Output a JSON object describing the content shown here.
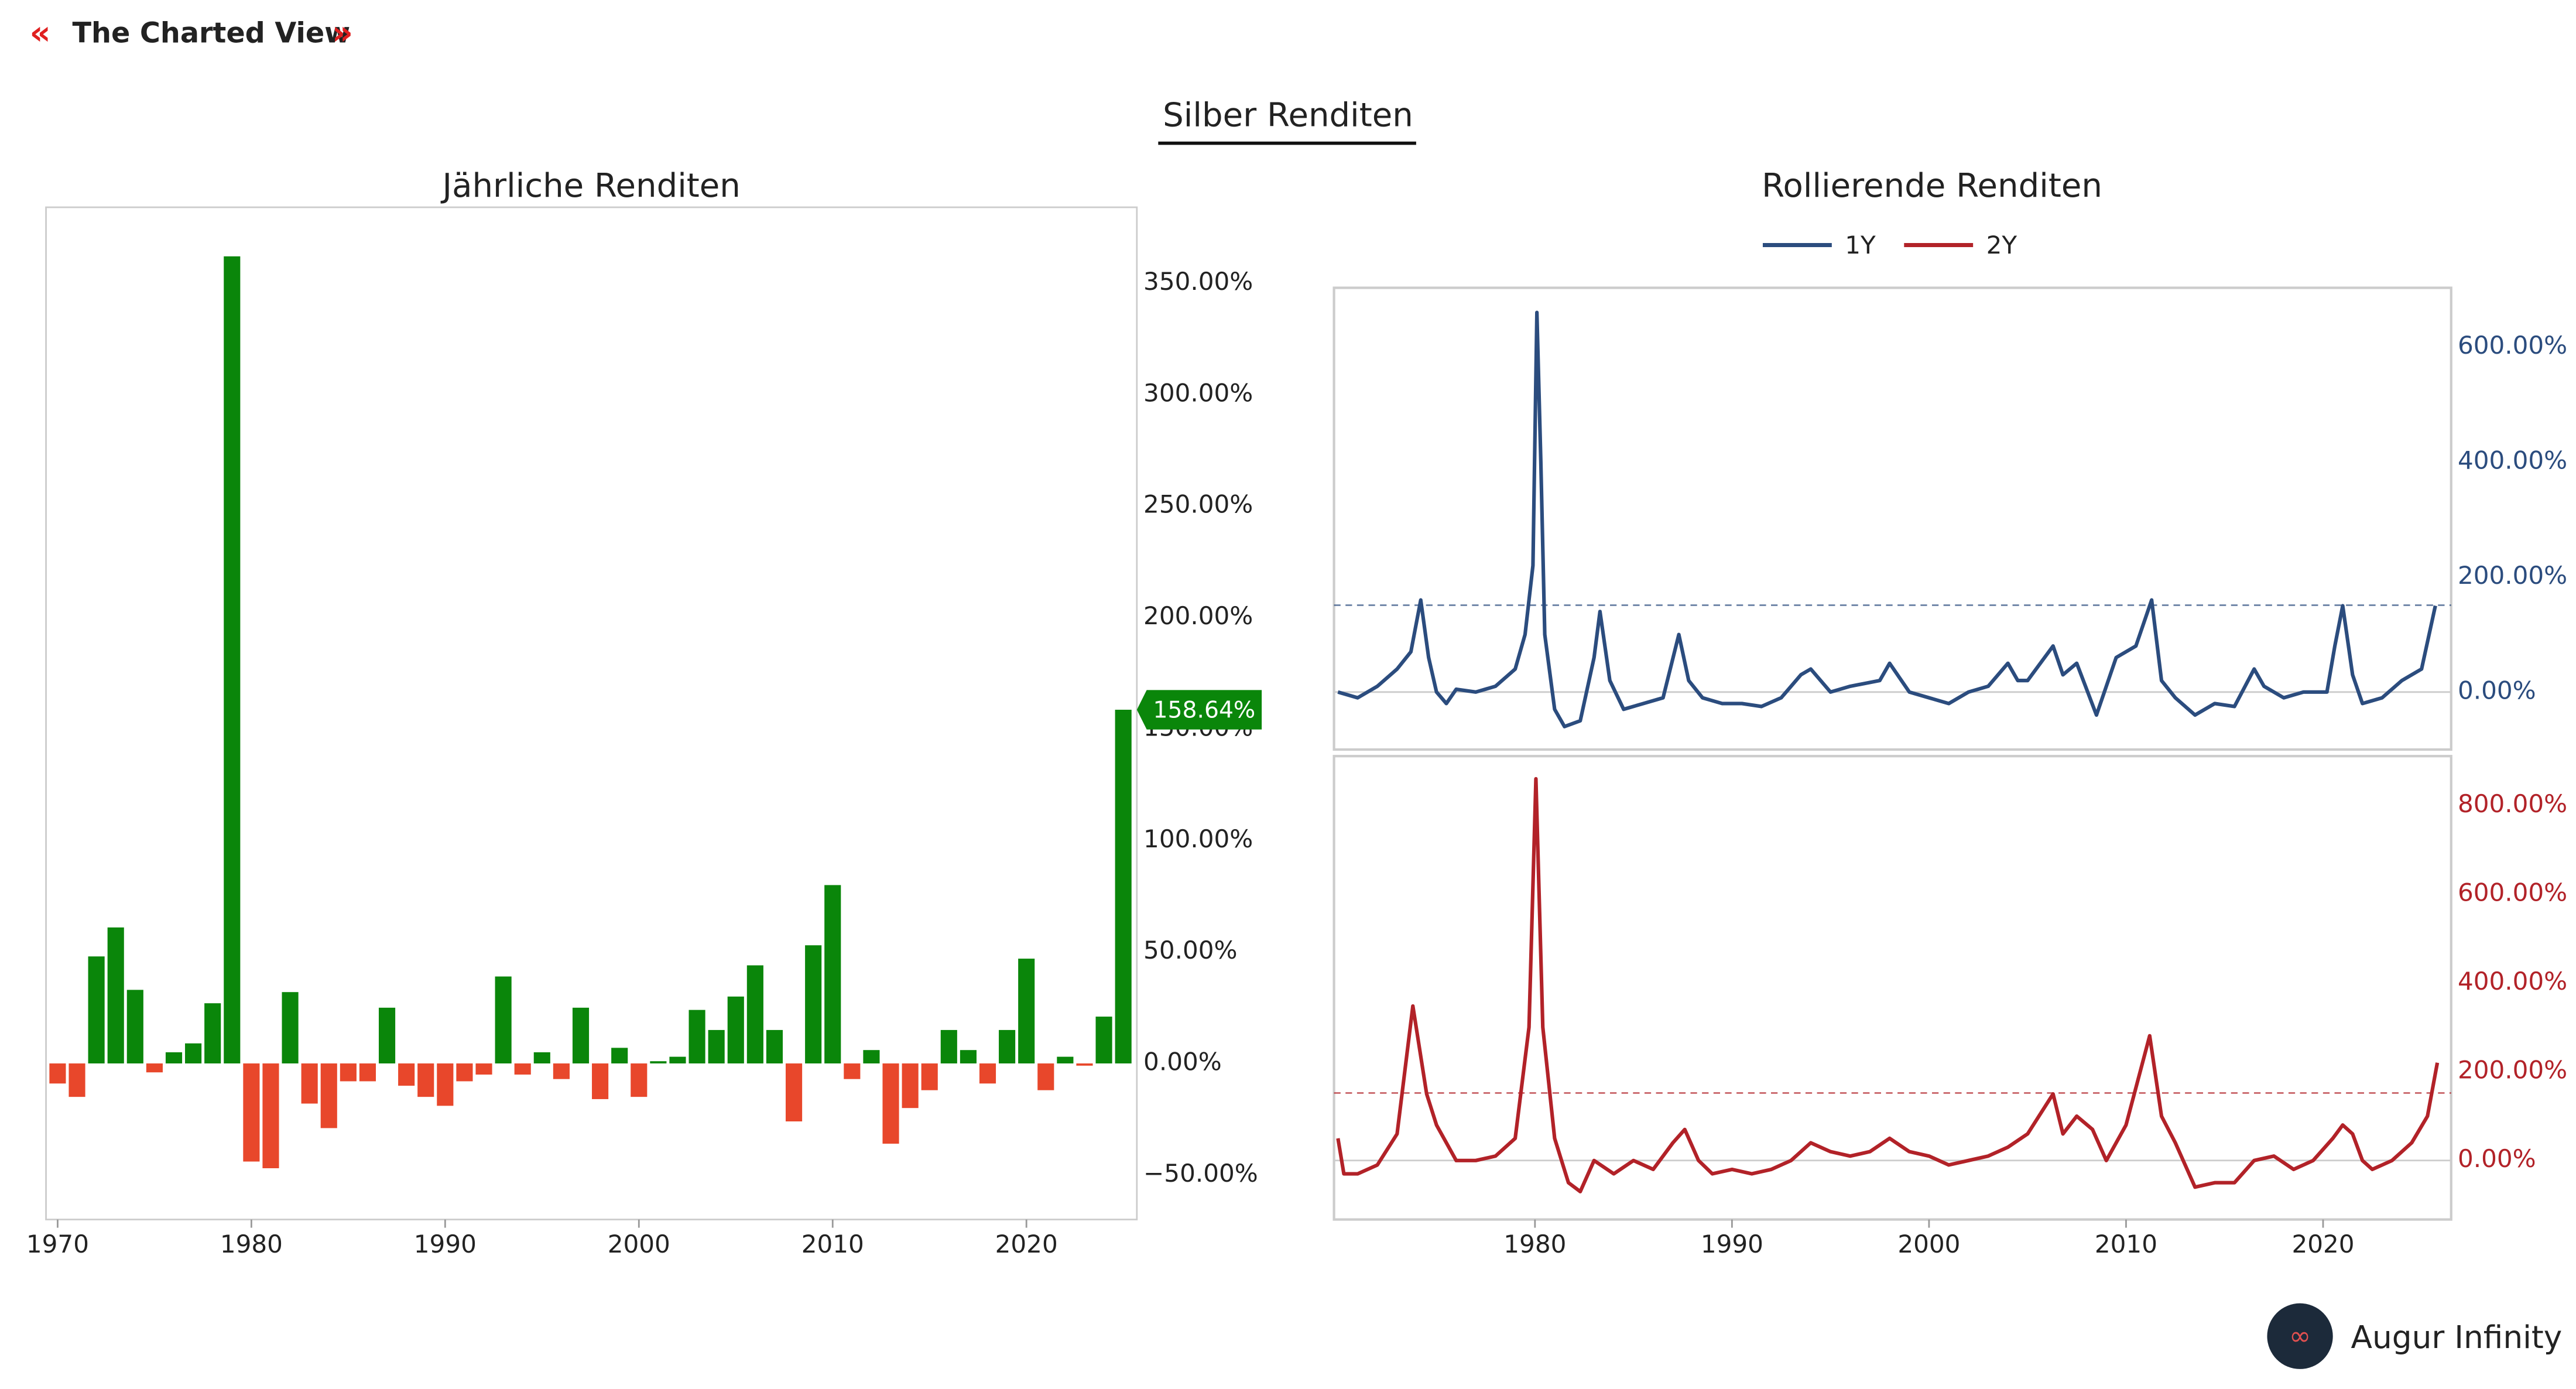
{
  "header": {
    "brand": "The Charted View",
    "title": "Silber Renditen"
  },
  "footer": "Augur Infinity",
  "chart_data": [
    {
      "type": "bar",
      "title": "Jährliche Renditen",
      "x": [
        1970,
        1971,
        1972,
        1973,
        1974,
        1975,
        1976,
        1977,
        1978,
        1979,
        1980,
        1981,
        1982,
        1983,
        1984,
        1985,
        1986,
        1987,
        1988,
        1989,
        1990,
        1991,
        1992,
        1993,
        1994,
        1995,
        1996,
        1997,
        1998,
        1999,
        2000,
        2001,
        2002,
        2003,
        2004,
        2005,
        2006,
        2007,
        2008,
        2009,
        2010,
        2011,
        2012,
        2013,
        2014,
        2015,
        2016,
        2017,
        2018,
        2019,
        2020,
        2021,
        2022,
        2023,
        2024,
        2025
      ],
      "values": [
        -9,
        -15,
        48,
        61,
        33,
        -4,
        5,
        9,
        27,
        362,
        -44,
        -47,
        32,
        -18,
        -29,
        -8,
        -8,
        25,
        -10,
        -15,
        -19,
        -8,
        -5,
        39,
        -5,
        5,
        -7,
        25,
        -16,
        7,
        -15,
        1,
        3,
        24,
        15,
        30,
        44,
        15,
        -26,
        53,
        80,
        -7,
        6,
        -36,
        -20,
        -12,
        15,
        6,
        -9,
        15,
        47,
        -12,
        3,
        -1,
        21,
        158.64
      ],
      "value_labels": [
        null,
        null,
        null,
        null,
        null,
        null,
        null,
        null,
        null,
        null,
        null,
        null,
        null,
        null,
        null,
        null,
        null,
        null,
        null,
        null,
        null,
        null,
        null,
        null,
        null,
        null,
        null,
        null,
        null,
        null,
        null,
        null,
        null,
        null,
        null,
        null,
        null,
        null,
        null,
        null,
        null,
        null,
        null,
        null,
        null,
        null,
        null,
        null,
        null,
        null,
        null,
        null,
        null,
        null,
        null,
        "158.64%"
      ],
      "colors": {
        "positive": "#0a860a",
        "negative": "#e8472b"
      },
      "xlim": [
        1969.4,
        2025.7
      ],
      "xticks": [
        1970,
        1980,
        1990,
        2000,
        2010,
        2020
      ],
      "ylim": [
        -70,
        384
      ],
      "yticks": [
        {
          "value": -50,
          "label": "−50.00%"
        },
        {
          "value": 0,
          "label": "0.00%"
        },
        {
          "value": 50,
          "label": "50.00%"
        },
        {
          "value": 100,
          "label": "100.00%"
        },
        {
          "value": 150,
          "label": "150.00%"
        },
        {
          "value": 200,
          "label": "200.00%"
        },
        {
          "value": 250,
          "label": "250.00%"
        },
        {
          "value": 300,
          "label": "300.00%"
        },
        {
          "value": 350,
          "label": "350.00%"
        }
      ]
    },
    {
      "type": "line",
      "title": "Rollierende Renditen",
      "xlim": [
        1969.8,
        2026.5
      ],
      "xticks": [
        1980,
        1990,
        2000,
        2010,
        2020
      ],
      "ylim": [
        -100,
        703
      ],
      "yticks": [
        {
          "value": 0,
          "label": "0.00%"
        },
        {
          "value": 200,
          "label": "200.00%"
        },
        {
          "value": 400,
          "label": "400.00%"
        },
        {
          "value": 600,
          "label": "600.00%"
        }
      ],
      "y2lim": [
        -133,
        911
      ],
      "y2ticks": [
        {
          "value": 0,
          "label": "0.00%"
        },
        {
          "value": 200,
          "label": "200.00%"
        },
        {
          "value": 400,
          "label": "400.00%"
        },
        {
          "value": 600,
          "label": "600.00%"
        },
        {
          "value": 800,
          "label": "800.00%"
        }
      ],
      "series": [
        {
          "name": "1Y",
          "color": "#2b4c7e",
          "axis": "y",
          "reference": 151,
          "x": [
            1970,
            1971,
            1972,
            1973,
            1973.7,
            1974.2,
            1974.6,
            1975,
            1975.5,
            1976,
            1977,
            1978,
            1979,
            1979.5,
            1979.9,
            1980.1,
            1980.3,
            1980.5,
            1981,
            1981.5,
            1982.3,
            1983,
            1983.3,
            1983.8,
            1984.5,
            1985.5,
            1986.5,
            1987.3,
            1987.8,
            1988.5,
            1989.5,
            1990.5,
            1991.5,
            1992.5,
            1993.5,
            1994,
            1995,
            1996,
            1997.5,
            1998,
            1999,
            2000,
            2001,
            2002,
            2003,
            2004,
            2004.5,
            2005,
            2006.3,
            2006.8,
            2007.5,
            2008.5,
            2009.5,
            2010.5,
            2011.3,
            2011.8,
            2012.5,
            2013.5,
            2014.5,
            2015.5,
            2016.5,
            2017,
            2018,
            2019,
            2020.2,
            2020.6,
            2021,
            2021.5,
            2022,
            2023,
            2024,
            2025,
            2025.7
          ],
          "values": [
            0,
            -10,
            10,
            40,
            70,
            160,
            60,
            0,
            -20,
            5,
            0,
            10,
            40,
            100,
            220,
            660,
            400,
            100,
            -30,
            -60,
            -50,
            60,
            140,
            20,
            -30,
            -20,
            -10,
            100,
            20,
            -10,
            -20,
            -20,
            -25,
            -10,
            30,
            40,
            0,
            10,
            20,
            50,
            0,
            -10,
            -20,
            0,
            10,
            50,
            20,
            20,
            80,
            30,
            50,
            -40,
            60,
            80,
            160,
            20,
            -10,
            -40,
            -20,
            -25,
            40,
            10,
            -10,
            0,
            0,
            80,
            150,
            30,
            -20,
            -10,
            20,
            40,
            150
          ]
        },
        {
          "name": "2Y",
          "color": "#b22228",
          "axis": "y2",
          "reference": 152,
          "x": [
            1970,
            1970.3,
            1971,
            1972,
            1973,
            1973.8,
            1974.5,
            1975,
            1976,
            1977,
            1978,
            1979,
            1979.7,
            1980.05,
            1980.4,
            1981,
            1981.7,
            1982.3,
            1983,
            1984,
            1985,
            1986,
            1987,
            1987.6,
            1988.3,
            1989,
            1990,
            1991,
            1992,
            1993,
            1994,
            1995,
            1996,
            1997,
            1998,
            1999,
            2000,
            2001,
            2002,
            2003,
            2004,
            2005,
            2006.3,
            2006.8,
            2007.5,
            2008.3,
            2009,
            2010,
            2011.2,
            2011.8,
            2012.5,
            2013.5,
            2014.5,
            2015.5,
            2016.5,
            2017.5,
            2018.5,
            2019.5,
            2020.5,
            2021,
            2021.5,
            2022,
            2022.5,
            2023.5,
            2024.5,
            2025.3,
            2025.8
          ],
          "values": [
            50,
            -30,
            -30,
            -10,
            60,
            348,
            150,
            80,
            0,
            0,
            10,
            50,
            300,
            860,
            300,
            50,
            -50,
            -70,
            0,
            -30,
            0,
            -20,
            40,
            70,
            0,
            -30,
            -20,
            -30,
            -20,
            0,
            40,
            20,
            10,
            20,
            50,
            20,
            10,
            -10,
            0,
            10,
            30,
            60,
            150,
            60,
            100,
            70,
            0,
            80,
            281,
            100,
            40,
            -60,
            -50,
            -50,
            0,
            10,
            -20,
            0,
            50,
            80,
            60,
            0,
            -20,
            0,
            40,
            100,
            220
          ]
        }
      ]
    }
  ]
}
